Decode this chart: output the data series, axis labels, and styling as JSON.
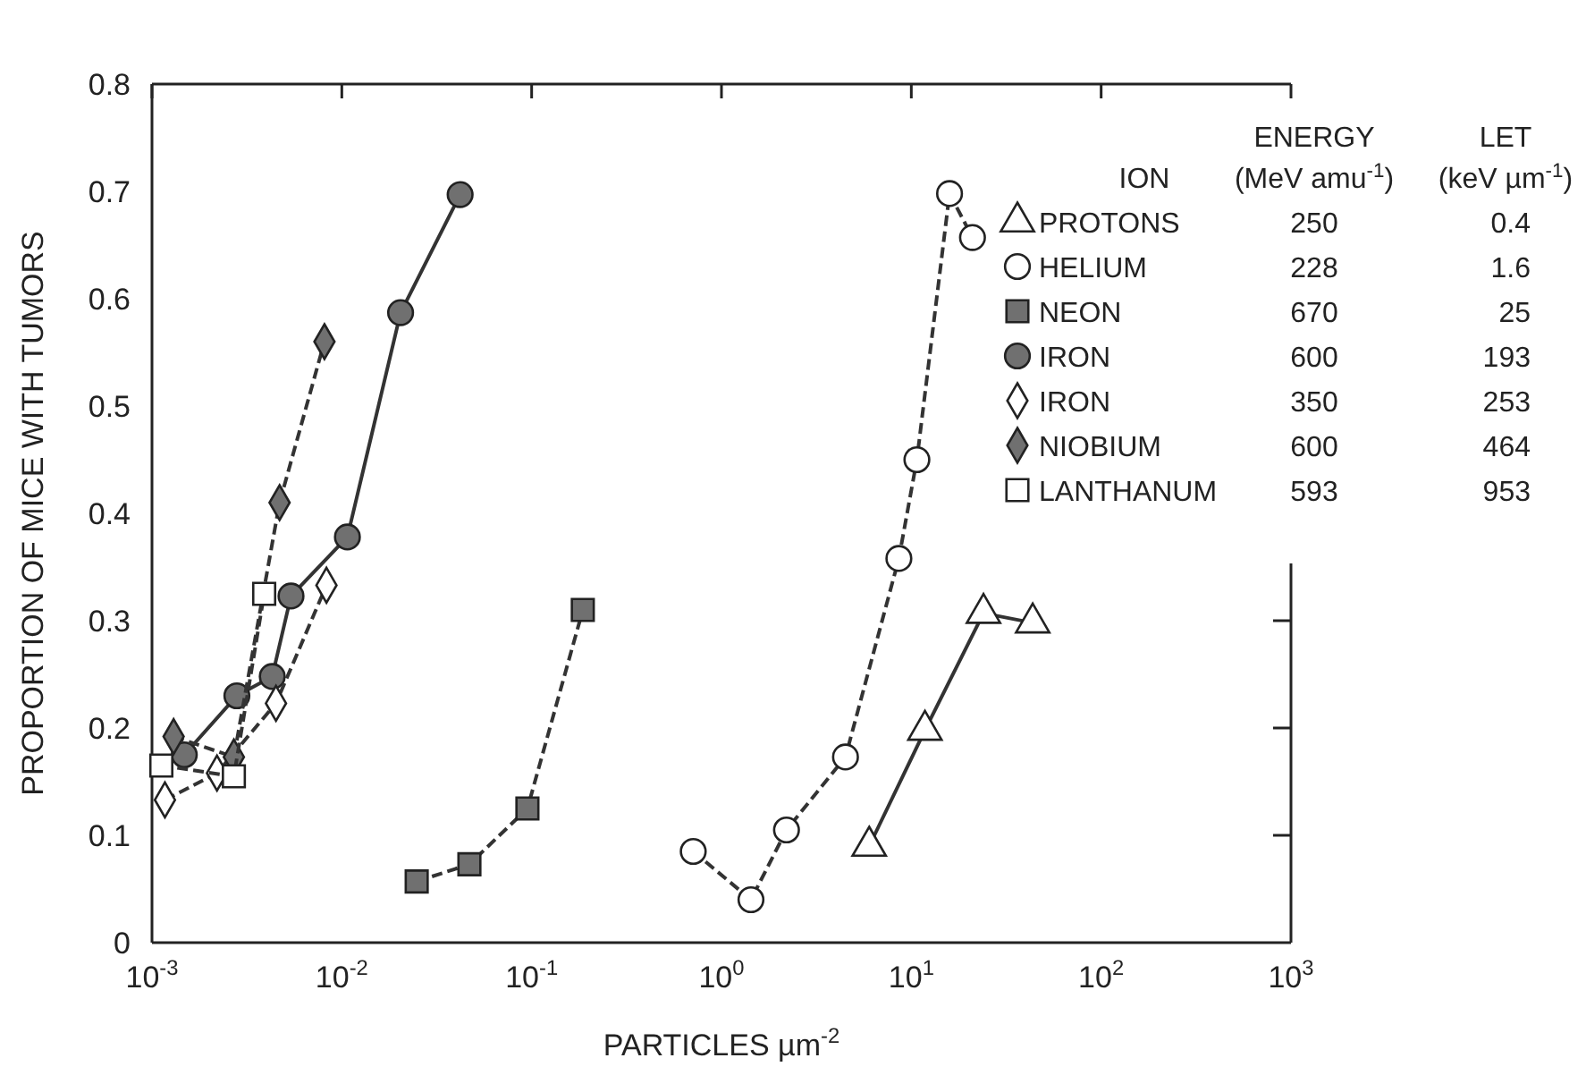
{
  "chart_data": {
    "type": "line",
    "xlabel": "PARTICLES µm$^{-2}$",
    "ylabel": "PROPORTION OF MICE WITH TUMORS",
    "log": "x",
    "xlim": [
      0.001,
      1000
    ],
    "ylim": [
      0,
      0.8
    ],
    "xticks": [
      {
        "value": 0.001,
        "label": "10$^{-3}$"
      },
      {
        "value": 0.01,
        "label": "10$^{-2}$"
      },
      {
        "value": 0.1,
        "label": "10$^{-1}$"
      },
      {
        "value": 1,
        "label": "10$^{0}$"
      },
      {
        "value": 10,
        "label": "10$^{1}$"
      },
      {
        "value": 100,
        "label": "10$^{2}$"
      },
      {
        "value": 1000,
        "label": "10$^{3}$"
      }
    ],
    "yticks": [
      0,
      0.1,
      0.2,
      0.3,
      0.4,
      0.5,
      0.6,
      0.7,
      0.8
    ],
    "grid": false,
    "legend": "top right",
    "legend_title": "ION",
    "annotations": [
      "ENERGY",
      "(MeV amu$^{-1}$)",
      "LET",
      "(keV µm$^{-1}$)",
      "250",
      "0.4",
      "228",
      "1.6",
      "670",
      "25",
      "600",
      "193",
      "350",
      "253",
      "600",
      "464",
      "593",
      "953"
    ],
    "series": [
      {
        "name": "PROTONS",
        "color": "#ffffff",
        "marker": "triangle",
        "line_style": "solid",
        "x": [
          6.0,
          11.8,
          24,
          43.6
        ],
        "values": [
          0.09,
          0.198,
          0.307,
          0.298
        ]
      },
      {
        "name": "HELIUM",
        "color": "#ffffff",
        "marker": "circle",
        "line_style": "dashed",
        "x": [
          0.71,
          1.43,
          2.2,
          4.5,
          8.6,
          10.7,
          15.9,
          21
        ],
        "values": [
          0.085,
          0.04,
          0.105,
          0.173,
          0.358,
          0.45,
          0.698,
          0.657
        ]
      },
      {
        "name": "NEON",
        "color": "#707070",
        "marker": "square",
        "line_style": "dashed",
        "x": [
          0.0248,
          0.047,
          0.095,
          0.186
        ],
        "values": [
          0.057,
          0.073,
          0.125,
          0.31
        ]
      },
      {
        "name": "IRON",
        "color": "#707070",
        "marker": "circle",
        "line_style": "solid",
        "x": [
          0.00148,
          0.0028,
          0.0043,
          0.0054,
          0.0107,
          0.0204,
          0.042
        ],
        "values": [
          0.175,
          0.23,
          0.248,
          0.323,
          0.378,
          0.587,
          0.697
        ]
      },
      {
        "name": "IRON",
        "color": "#ffffff",
        "marker": "diamond",
        "line_style": "dashed",
        "x": [
          0.00117,
          0.0022,
          0.0045,
          0.0083
        ],
        "values": [
          0.133,
          0.158,
          0.223,
          0.333
        ]
      },
      {
        "name": "NIOBIUM",
        "color": "#707070",
        "marker": "diamond",
        "line_style": "dashed",
        "x": [
          0.0013,
          0.0027,
          0.0047,
          0.0081
        ],
        "values": [
          0.192,
          0.173,
          0.41,
          0.56
        ]
      },
      {
        "name": "LANTHANUM",
        "color": "#ffffff",
        "marker": "square",
        "line_style": "dashed",
        "x": [
          0.00112,
          0.0027,
          0.0039
        ],
        "values": [
          0.165,
          0.155,
          0.325
        ]
      }
    ]
  }
}
